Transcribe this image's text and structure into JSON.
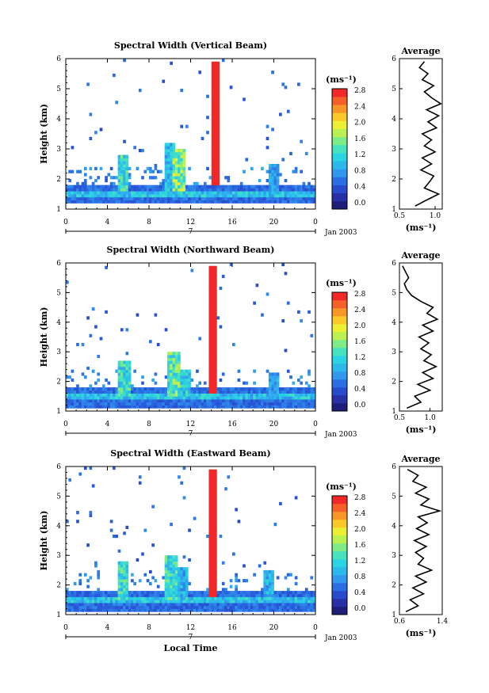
{
  "chart_data": [
    {
      "type": "heatmap",
      "title": "Spectral Width (Vertical Beam)",
      "ylabel": "Height (km)",
      "xlabel": "",
      "x_ticks": [
        "0",
        "4",
        "8",
        "12",
        "16",
        "20",
        "0"
      ],
      "y_ticks": [
        "1",
        "2",
        "3",
        "4",
        "5",
        "6"
      ],
      "xlim": [
        0,
        24
      ],
      "ylim": [
        1,
        6
      ],
      "date_ticks": [
        "7"
      ],
      "date_label": "Jan 2003",
      "colorbar": {
        "unit": "(ms⁻¹)",
        "ticks": [
          "0.0",
          "0.4",
          "0.8",
          "1.2",
          "1.6",
          "2.0",
          "2.4",
          "2.8"
        ],
        "range": [
          0,
          3.0
        ]
      },
      "features": [
        {
          "kind": "layer",
          "x": [
            0,
            24
          ],
          "y": [
            1.2,
            1.8
          ],
          "v": 0.6
        },
        {
          "kind": "layer",
          "x": [
            0,
            24
          ],
          "y": [
            1.4,
            1.55
          ],
          "v": 1.1
        },
        {
          "kind": "column",
          "x": 14.3,
          "y": [
            1.8,
            5.9
          ],
          "v": 3.0
        },
        {
          "kind": "column",
          "x": 5.5,
          "y": [
            1.6,
            2.8
          ],
          "v": 1.6
        },
        {
          "kind": "column",
          "x": 10.0,
          "y": [
            1.6,
            3.2
          ],
          "v": 1.3
        },
        {
          "kind": "column",
          "x": 10.8,
          "y": [
            1.6,
            3.0
          ],
          "v": 2.0
        },
        {
          "kind": "column",
          "x": 20.0,
          "y": [
            1.6,
            2.5
          ],
          "v": 1.1
        }
      ],
      "profile": {
        "title": "Average",
        "xlabel": "(ms⁻¹)",
        "x_ticks": [
          "0.5",
          "1.0"
        ],
        "xlim": [
          0.5,
          1.1
        ],
        "y": [
          1.1,
          1.3,
          1.5,
          1.7,
          1.9,
          2.1,
          2.3,
          2.5,
          2.7,
          2.9,
          3.1,
          3.3,
          3.5,
          3.7,
          3.9,
          4.1,
          4.3,
          4.5,
          4.7,
          4.9,
          5.1,
          5.3,
          5.5,
          5.7,
          5.9
        ],
        "x": [
          0.72,
          0.88,
          1.05,
          0.85,
          0.92,
          0.98,
          0.8,
          0.95,
          0.82,
          1.0,
          0.85,
          0.95,
          0.82,
          1.02,
          0.9,
          1.05,
          0.88,
          1.08,
          0.95,
          0.85,
          0.98,
          0.82,
          0.9,
          0.78,
          0.85
        ]
      }
    },
    {
      "type": "heatmap",
      "title": "Spectral Width (Northward Beam)",
      "ylabel": "Height (km)",
      "xlabel": "",
      "x_ticks": [
        "0",
        "4",
        "8",
        "12",
        "16",
        "20",
        "0"
      ],
      "y_ticks": [
        "1",
        "2",
        "3",
        "4",
        "5",
        "6"
      ],
      "xlim": [
        0,
        24
      ],
      "ylim": [
        1,
        6
      ],
      "date_ticks": [
        "7"
      ],
      "date_label": "Jan 2003",
      "colorbar": {
        "unit": "(ms⁻¹)",
        "ticks": [
          "0.0",
          "0.4",
          "0.8",
          "1.2",
          "1.6",
          "2.0",
          "2.4",
          "2.8"
        ],
        "range": [
          0,
          3.0
        ]
      },
      "features": [
        {
          "kind": "layer",
          "x": [
            0,
            24
          ],
          "y": [
            1.15,
            1.75
          ],
          "v": 0.6
        },
        {
          "kind": "layer",
          "x": [
            0,
            24
          ],
          "y": [
            1.45,
            1.6
          ],
          "v": 1.1
        },
        {
          "kind": "column",
          "x": 14.2,
          "y": [
            1.6,
            5.9
          ],
          "v": 3.0
        },
        {
          "kind": "column",
          "x": 5.7,
          "y": [
            1.5,
            2.7
          ],
          "v": 1.6
        },
        {
          "kind": "column",
          "x": 10.3,
          "y": [
            1.5,
            3.0
          ],
          "v": 1.8
        },
        {
          "kind": "column",
          "x": 11.5,
          "y": [
            1.5,
            2.4
          ],
          "v": 1.4
        },
        {
          "kind": "column",
          "x": 20.0,
          "y": [
            1.5,
            2.3
          ],
          "v": 1.1
        }
      ],
      "profile": {
        "title": "Average",
        "xlabel": "(ms⁻¹)",
        "x_ticks": [
          "0.5",
          "1.0"
        ],
        "xlim": [
          0.5,
          1.2
        ],
        "y": [
          1.1,
          1.3,
          1.5,
          1.7,
          1.9,
          2.1,
          2.3,
          2.5,
          2.7,
          2.9,
          3.1,
          3.3,
          3.5,
          3.7,
          3.9,
          4.1,
          4.3,
          4.5,
          4.7,
          4.9,
          5.1,
          5.3,
          5.5,
          5.7,
          5.9
        ],
        "x": [
          0.62,
          0.85,
          0.75,
          1.0,
          0.8,
          1.05,
          0.88,
          1.1,
          0.9,
          1.02,
          0.85,
          0.98,
          0.82,
          1.05,
          0.88,
          1.12,
          0.95,
          1.05,
          0.85,
          0.7,
          0.62,
          0.58,
          0.65,
          0.6,
          0.55
        ]
      }
    },
    {
      "type": "heatmap",
      "title": "Spectral Width (Eastward Beam)",
      "ylabel": "Height (km)",
      "xlabel": "Local Time",
      "x_ticks": [
        "0",
        "4",
        "8",
        "12",
        "16",
        "20",
        "0"
      ],
      "y_ticks": [
        "1",
        "2",
        "3",
        "4",
        "5",
        "6"
      ],
      "xlim": [
        0,
        24
      ],
      "ylim": [
        1,
        6
      ],
      "date_ticks": [
        "7"
      ],
      "date_label": "Jan 2003",
      "colorbar": {
        "unit": "(ms⁻¹)",
        "ticks": [
          "0.0",
          "0.4",
          "0.8",
          "1.2",
          "1.6",
          "2.0",
          "2.4",
          "2.8"
        ],
        "range": [
          0,
          3.0
        ]
      },
      "features": [
        {
          "kind": "layer",
          "x": [
            0,
            24
          ],
          "y": [
            1.1,
            1.8
          ],
          "v": 0.6
        },
        {
          "kind": "layer",
          "x": [
            0,
            24
          ],
          "y": [
            1.4,
            1.55
          ],
          "v": 1.1
        },
        {
          "kind": "column",
          "x": 14.2,
          "y": [
            1.6,
            5.9
          ],
          "v": 3.0
        },
        {
          "kind": "column",
          "x": 5.5,
          "y": [
            1.5,
            2.8
          ],
          "v": 1.6
        },
        {
          "kind": "column",
          "x": 10.2,
          "y": [
            1.5,
            3.0
          ],
          "v": 1.6
        },
        {
          "kind": "column",
          "x": 11.2,
          "y": [
            1.5,
            2.6
          ],
          "v": 1.2
        },
        {
          "kind": "column",
          "x": 19.5,
          "y": [
            1.5,
            2.5
          ],
          "v": 1.2
        }
      ],
      "profile": {
        "title": "Average",
        "xlabel": "(ms⁻¹)",
        "x_ticks": [
          "0.6",
          "1.4"
        ],
        "xlim": [
          0.6,
          1.4
        ],
        "y": [
          1.1,
          1.3,
          1.5,
          1.7,
          1.9,
          2.1,
          2.3,
          2.5,
          2.7,
          2.9,
          3.1,
          3.3,
          3.5,
          3.7,
          3.9,
          4.1,
          4.3,
          4.5,
          4.7,
          4.9,
          5.1,
          5.3,
          5.5,
          5.7,
          5.9
        ],
        "x": [
          0.72,
          0.95,
          0.8,
          1.05,
          0.85,
          1.1,
          0.9,
          1.2,
          0.95,
          1.05,
          0.9,
          1.1,
          0.88,
          1.15,
          0.92,
          1.12,
          0.95,
          1.35,
          1.0,
          1.15,
          0.9,
          1.1,
          0.85,
          0.95,
          0.75
        ]
      }
    }
  ]
}
